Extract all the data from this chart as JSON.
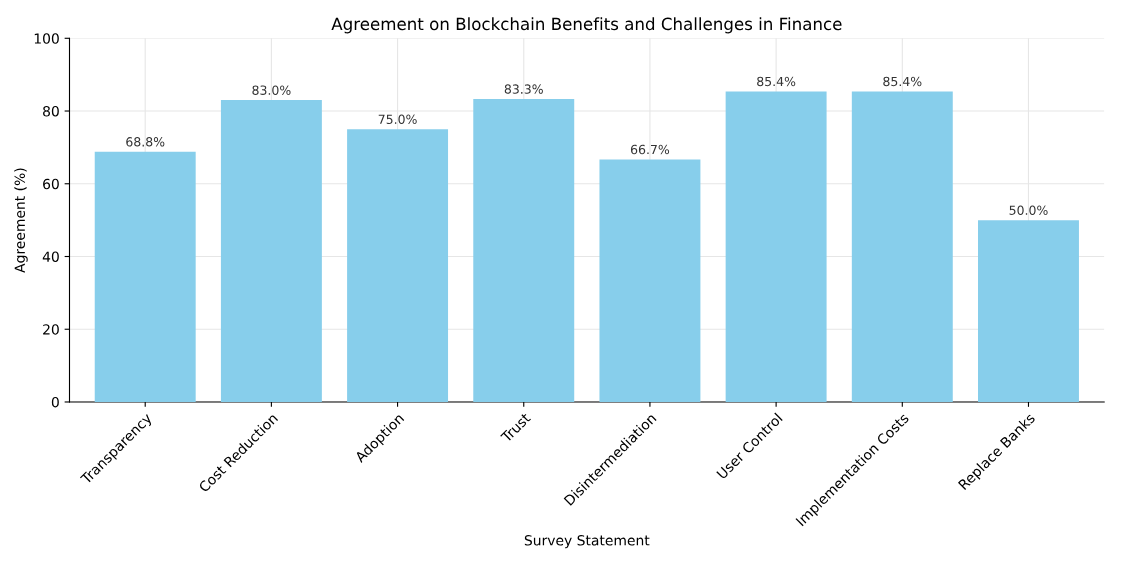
{
  "chart_data": {
    "type": "bar",
    "title": "Agreement on Blockchain Benefits and Challenges in Finance",
    "xlabel": "Survey Statement",
    "ylabel": "Agreement (%)",
    "categories": [
      "Transparency",
      "Cost Reduction",
      "Adoption",
      "Trust",
      "Disintermediation",
      "User Control",
      "Implementation Costs",
      "Replace Banks"
    ],
    "values": [
      68.8,
      83.0,
      75.0,
      83.3,
      66.7,
      85.4,
      85.4,
      50.0
    ],
    "value_labels": [
      "68.8%",
      "83.0%",
      "75.0%",
      "83.3%",
      "66.7%",
      "85.4%",
      "85.4%",
      "50.0%"
    ],
    "color": "#87ceeb",
    "ylim": [
      0,
      100
    ],
    "yticks": [
      0,
      20,
      40,
      60,
      80,
      100
    ],
    "grid": true
  }
}
